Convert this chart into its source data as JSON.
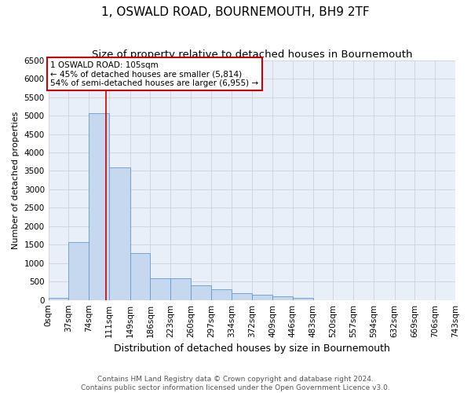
{
  "title": "1, OSWALD ROAD, BOURNEMOUTH, BH9 2TF",
  "subtitle": "Size of property relative to detached houses in Bournemouth",
  "xlabel": "Distribution of detached houses by size in Bournemouth",
  "ylabel": "Number of detached properties",
  "footer_line1": "Contains HM Land Registry data © Crown copyright and database right 2024.",
  "footer_line2": "Contains public sector information licensed under the Open Government Licence v3.0.",
  "property_label": "1 OSWALD ROAD: 105sqm",
  "annotation_line1": "← 45% of detached houses are smaller (5,814)",
  "annotation_line2": "54% of semi-detached houses are larger (6,955) →",
  "property_size": 105,
  "bin_edges": [
    0,
    37,
    74,
    111,
    149,
    186,
    223,
    260,
    297,
    334,
    372,
    409,
    446,
    483,
    520,
    557,
    594,
    632,
    669,
    706,
    743
  ],
  "bar_counts": [
    55,
    1580,
    5060,
    3600,
    1280,
    600,
    590,
    390,
    290,
    190,
    145,
    95,
    50,
    0,
    0,
    0,
    0,
    0,
    0,
    0
  ],
  "bar_color": "#c5d8ef",
  "bar_edge_color": "#6699cc",
  "bg_color": "#e8eff8",
  "vline_color": "#cc0000",
  "annotation_box_color": "#cc0000",
  "ylim": [
    0,
    6500
  ],
  "yticks": [
    0,
    500,
    1000,
    1500,
    2000,
    2500,
    3000,
    3500,
    4000,
    4500,
    5000,
    5500,
    6000,
    6500
  ],
  "title_fontsize": 11,
  "subtitle_fontsize": 9.5,
  "xlabel_fontsize": 9,
  "ylabel_fontsize": 8,
  "tick_fontsize": 7.5,
  "annotation_fontsize": 7.5,
  "footer_fontsize": 6.5
}
